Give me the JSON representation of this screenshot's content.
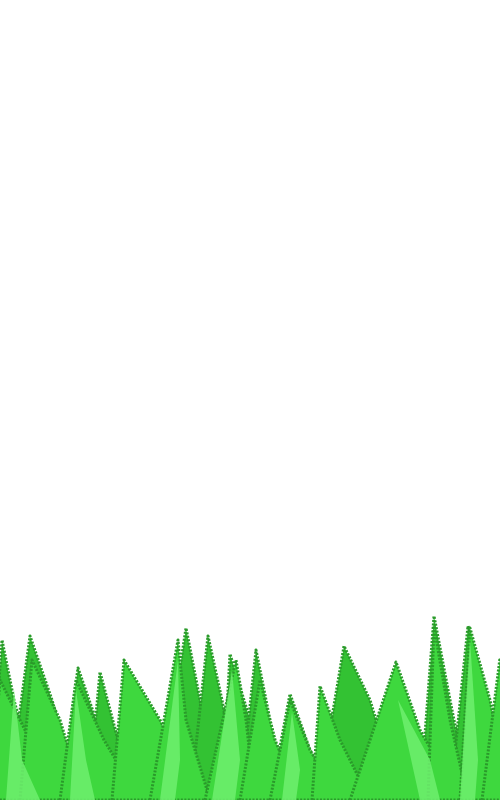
{
  "scene": {
    "background_color": "#ffffff",
    "grass_colors": {
      "base": "#33c233",
      "front": "#3ed83e",
      "highlight": "#6ef06e",
      "outline": "#2a9a2a"
    }
  }
}
